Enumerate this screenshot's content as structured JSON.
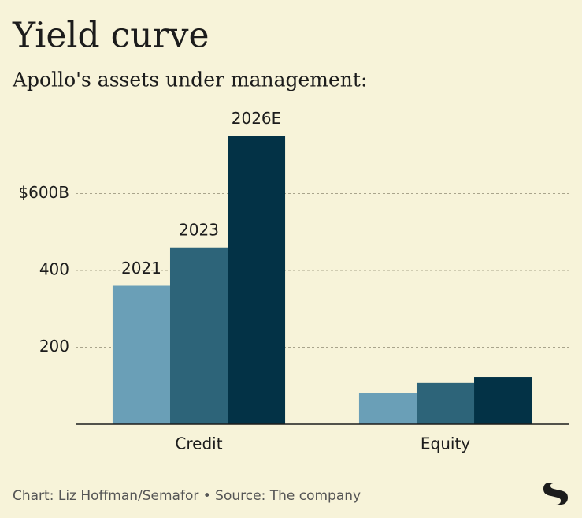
{
  "chart_data": {
    "type": "bar",
    "title": "Yield curve",
    "subtitle": "Apollo's assets under management:",
    "categories": [
      "Credit",
      "Equity"
    ],
    "series": [
      {
        "name": "2021",
        "color": "#6a9fb7",
        "values": [
          360,
          82
        ]
      },
      {
        "name": "2023",
        "color": "#2d6479",
        "values": [
          460,
          107
        ]
      },
      {
        "name": "2026E",
        "color": "#033246",
        "values": [
          750,
          123
        ]
      }
    ],
    "ylim": [
      0,
      800
    ],
    "yticks": [
      200,
      400,
      {
        "value": 600,
        "label": "$600B"
      }
    ],
    "grid": true,
    "source": "Chart: Liz Hoffman/Semafor • Source: The company"
  }
}
